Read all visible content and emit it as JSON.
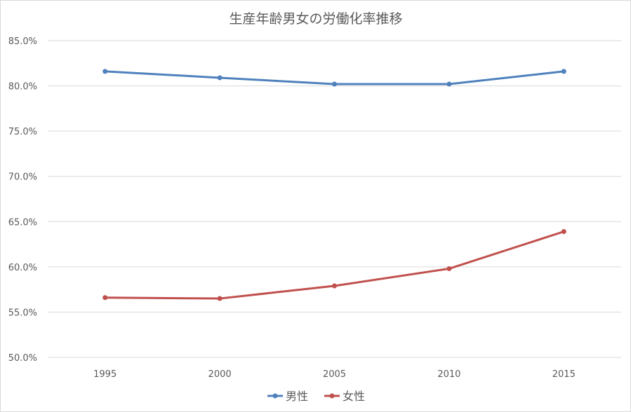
{
  "chart_data": {
    "type": "line",
    "title": "生産年齢男女の労働化率推移",
    "categories": [
      "1995",
      "2000",
      "2005",
      "2010",
      "2015"
    ],
    "series": [
      {
        "name": "男性",
        "color": "#4f81bd",
        "values": [
          81.6,
          80.9,
          80.2,
          80.2,
          81.6
        ]
      },
      {
        "name": "女性",
        "color": "#c0504d",
        "values": [
          56.6,
          56.5,
          57.9,
          59.8,
          63.9
        ]
      }
    ],
    "ylim": [
      50,
      85
    ],
    "yticks": [
      "85.0%",
      "80.0%",
      "75.0%",
      "70.0%",
      "65.0%",
      "60.0%",
      "55.0%",
      "50.0%"
    ],
    "ytick_values": [
      85,
      80,
      75,
      70,
      65,
      60,
      55,
      50
    ],
    "grid": true,
    "legend_position": "bottom"
  }
}
